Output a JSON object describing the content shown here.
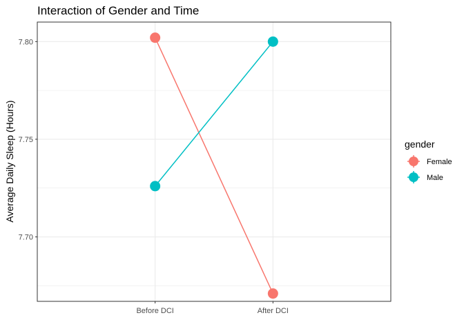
{
  "chart_data": {
    "type": "line",
    "title": "Interaction of Gender and Time",
    "xlabel": "",
    "ylabel": "Average Daily Sleep (Hours)",
    "categories": [
      "Before DCI",
      "After DCI"
    ],
    "ylim": [
      7.667,
      7.81
    ],
    "yticks": [
      "7.70",
      "7.75",
      "7.80"
    ],
    "grid": true,
    "legend": {
      "title": "gender",
      "placement": "right"
    },
    "series": [
      {
        "name": "Female",
        "color": "#F8766D",
        "values": [
          7.802,
          7.671
        ]
      },
      {
        "name": "Male",
        "color": "#00BFC4",
        "values": [
          7.726,
          7.8
        ]
      }
    ]
  }
}
